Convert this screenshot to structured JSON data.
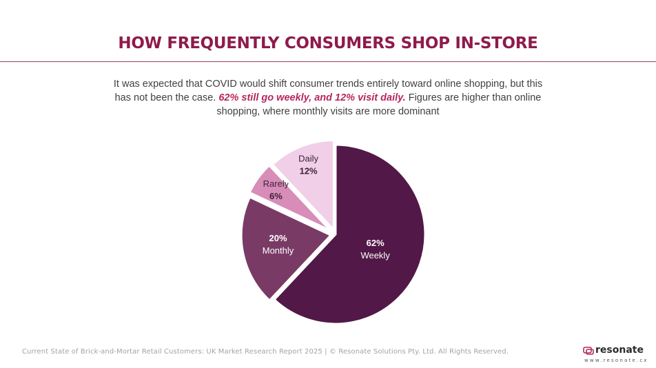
{
  "title": "HOW FREQUENTLY CONSUMERS SHOP IN-STORE",
  "subtitle": {
    "part1": "It was expected that COVID would shift consumer trends entirely toward online shopping, but this has not been the case. ",
    "highlight": "62% still go weekly, and 12% visit daily.",
    "part2": " Figures are higher than online shopping, where monthly visits are more dominant"
  },
  "chart_data": {
    "type": "pie",
    "title": "",
    "slices": [
      {
        "label": "Weekly",
        "value": 62,
        "value_label": "62%",
        "color": "#521847"
      },
      {
        "label": "Monthly",
        "value": 20,
        "value_label": "20%",
        "color": "#7a3a66"
      },
      {
        "label": "Rarely",
        "value": 6,
        "value_label": "6%",
        "color": "#d88cb8"
      },
      {
        "label": "Daily",
        "value": 12,
        "value_label": "12%",
        "color": "#f1cfe8"
      }
    ]
  },
  "footer": {
    "text": "Current State of Brick-and-Mortar Retail Customers: UK Market Research Report 2025 | © Resonate Solutions Pty. Ltd. All Rights Reserved."
  },
  "brand": {
    "name": "resonate",
    "url": "www.resonate.cx",
    "icon": "resonate-logo-icon"
  }
}
